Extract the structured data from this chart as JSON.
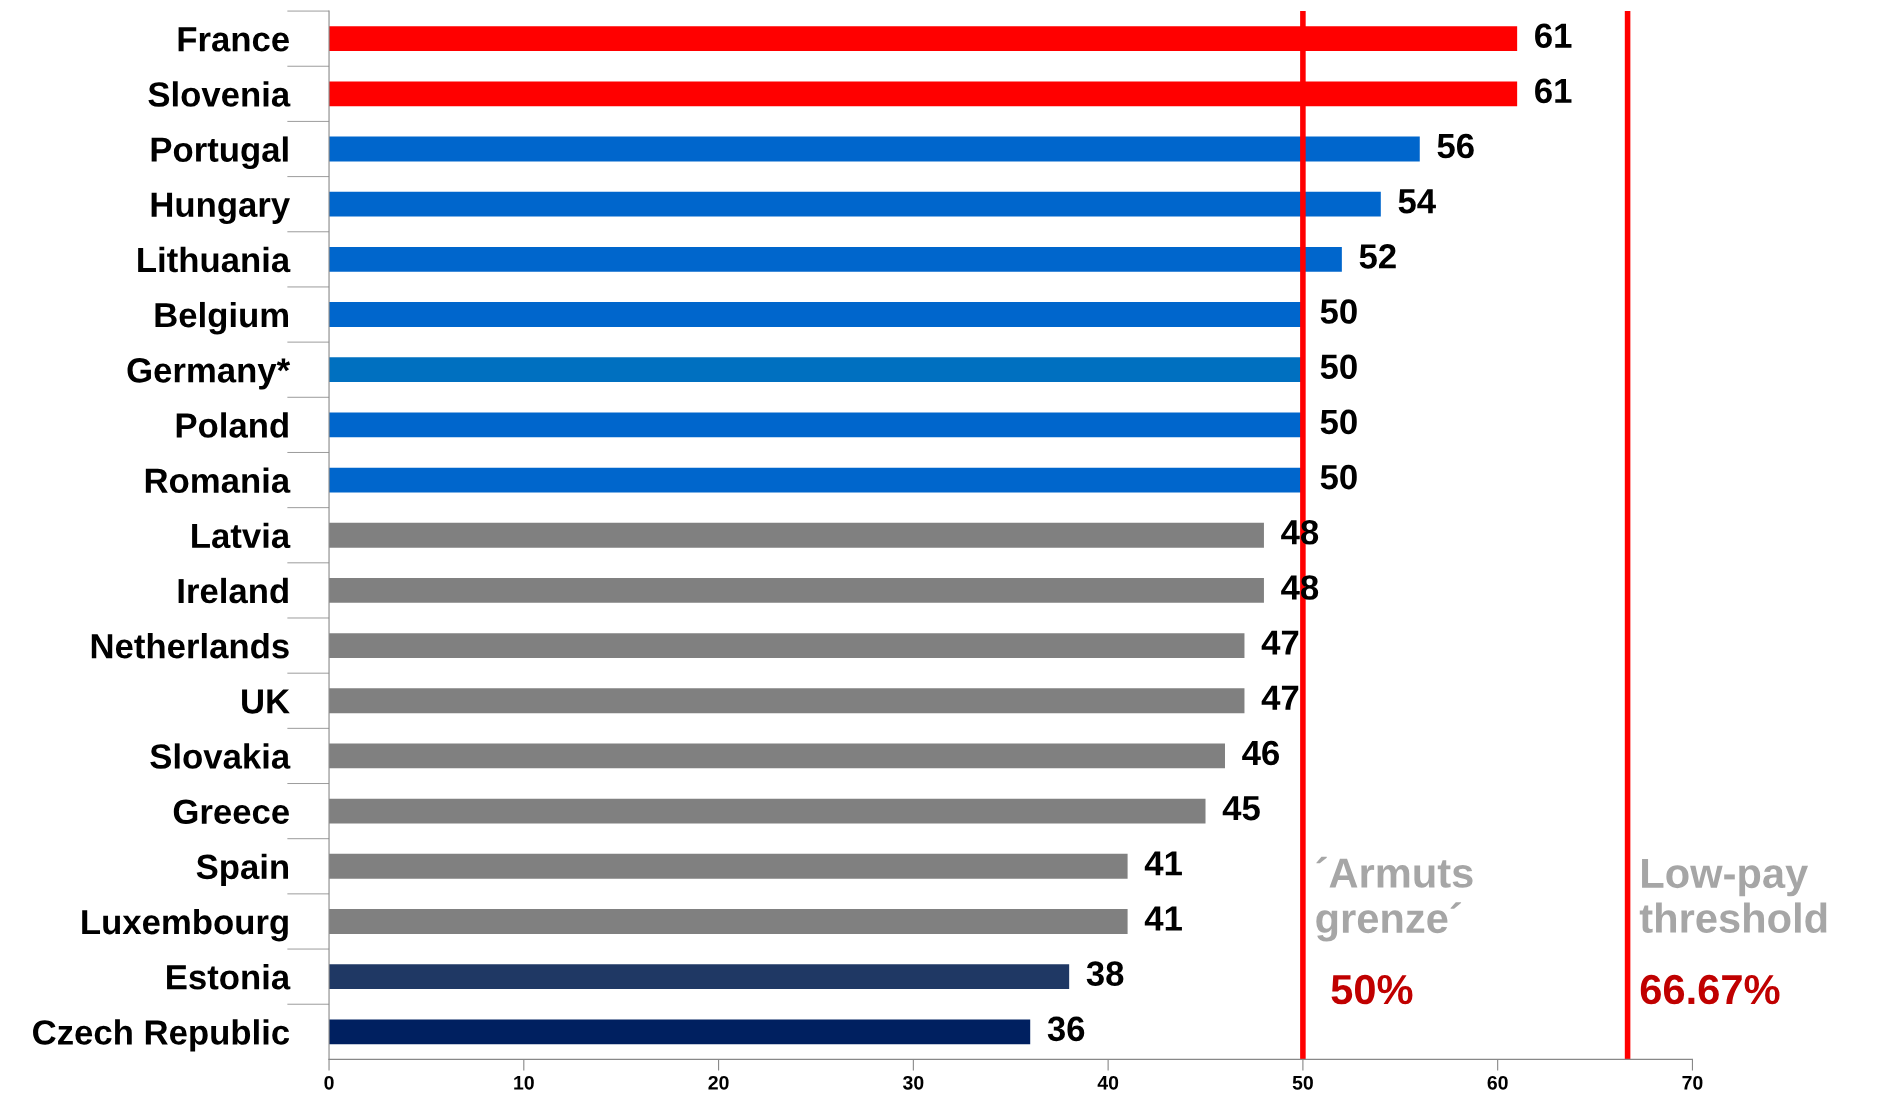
{
  "chart_data": {
    "type": "bar",
    "orientation": "horizontal",
    "categories": [
      "France",
      "Slovenia",
      "Portugal",
      "Hungary",
      "Lithuania",
      "Belgium",
      "Germany*",
      "Poland",
      "Romania",
      "Latvia",
      "Ireland",
      "Netherlands",
      "UK",
      "Slovakia",
      "Greece",
      "Spain",
      "Luxembourg",
      "Estonia",
      "Czech Republic"
    ],
    "values": [
      61,
      61,
      56,
      54,
      52,
      50,
      50,
      50,
      50,
      48,
      48,
      47,
      47,
      46,
      45,
      41,
      41,
      38,
      36
    ],
    "colors": [
      "#ff0000",
      "#ff0000",
      "#0066cc",
      "#0066cc",
      "#0066cc",
      "#0066cc",
      "#0070c0",
      "#0066cc",
      "#0066cc",
      "#808080",
      "#808080",
      "#808080",
      "#808080",
      "#808080",
      "#808080",
      "#808080",
      "#808080",
      "#1f3864",
      "#002060"
    ],
    "data_labels": true,
    "xlim": [
      0,
      70
    ],
    "xticks": [
      0,
      10,
      20,
      30,
      40,
      50,
      60,
      70
    ],
    "grid": false,
    "legend": false,
    "ref_lines": [
      {
        "axis": "x",
        "value": 50,
        "label": "50%",
        "color": "#ff0000"
      },
      {
        "axis": "x",
        "value": 66.67,
        "label": "66.67%",
        "color": "#ff0000"
      }
    ],
    "annotations": [
      "´Armuts\ngrenze´",
      "Low-pay\nthreshold"
    ]
  }
}
